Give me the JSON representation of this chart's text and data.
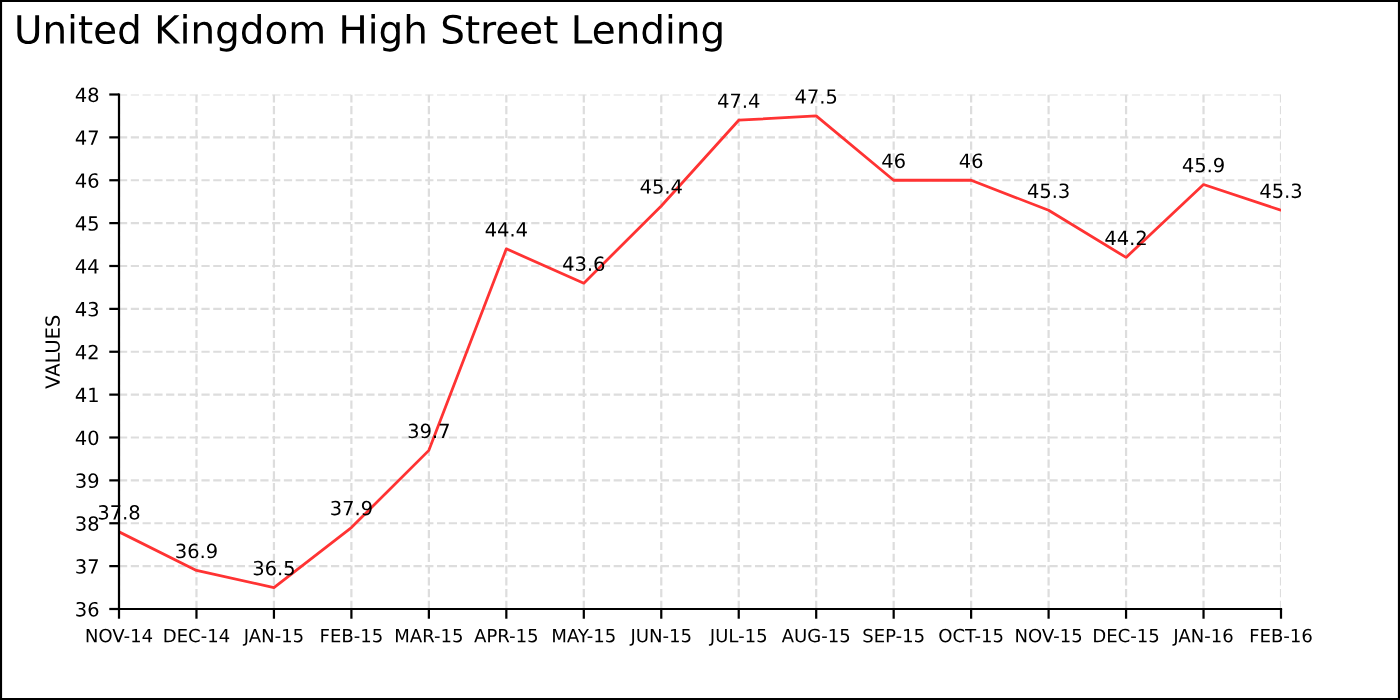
{
  "chart_data": {
    "type": "line",
    "title": "United Kingdom High Street Lending",
    "ylabel": "VALUES",
    "categories": [
      "NOV-14",
      "DEC-14",
      "JAN-15",
      "FEB-15",
      "MAR-15",
      "APR-15",
      "MAY-15",
      "JUN-15",
      "JUL-15",
      "AUG-15",
      "SEP-15",
      "OCT-15",
      "NOV-15",
      "DEC-15",
      "JAN-16",
      "FEB-16"
    ],
    "series": [
      {
        "color": "#ff3333",
        "values": [
          37.8,
          36.9,
          36.5,
          37.9,
          39.7,
          44.4,
          43.6,
          45.4,
          47.4,
          47.5,
          46,
          46,
          45.3,
          44.2,
          45.9,
          45.3
        ]
      }
    ],
    "data_labels": true,
    "ylim": [
      36,
      48
    ],
    "yticks": [
      36,
      37,
      38,
      39,
      40,
      41,
      42,
      43,
      44,
      45,
      46,
      47,
      48
    ],
    "grid": true,
    "marker": "none",
    "line_style": "solid"
  }
}
